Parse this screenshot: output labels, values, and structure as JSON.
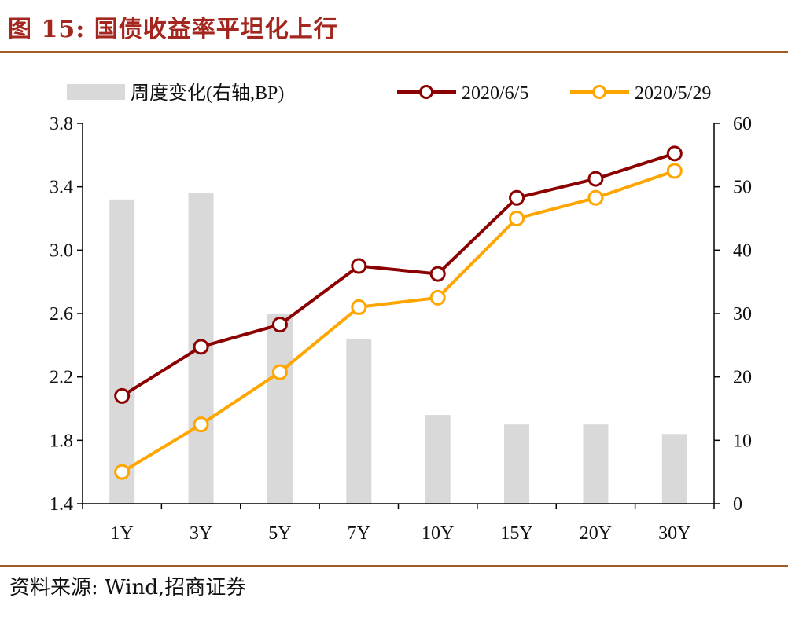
{
  "header": {
    "title": "图 15:  国债收益率平坦化上行"
  },
  "footer": {
    "source": "资料来源:  Wind,招商证券"
  },
  "chart_data": {
    "type": "bar+line",
    "categories": [
      "1Y",
      "3Y",
      "5Y",
      "7Y",
      "10Y",
      "15Y",
      "20Y",
      "30Y"
    ],
    "left_axis": {
      "ylim": [
        1.4,
        3.8
      ],
      "ticks": [
        "1.4",
        "1.8",
        "2.2",
        "2.6",
        "3.0",
        "3.4",
        "3.8"
      ]
    },
    "right_axis": {
      "ylim": [
        0,
        60
      ],
      "ticks": [
        "0",
        "10",
        "20",
        "30",
        "40",
        "50",
        "60"
      ]
    },
    "bars": {
      "name": "周度变化(右轴,BP)",
      "axis": "right",
      "color": "#d9d9d9",
      "values": [
        48,
        49,
        30,
        26,
        14,
        12.5,
        12.5,
        11
      ]
    },
    "series": [
      {
        "name": "2020/6/5",
        "axis": "left",
        "color": "#8b0000",
        "values": [
          2.08,
          2.39,
          2.53,
          2.9,
          2.85,
          3.33,
          3.45,
          3.61
        ]
      },
      {
        "name": "2020/5/29",
        "axis": "left",
        "color": "#ffa500",
        "values": [
          1.6,
          1.9,
          2.23,
          2.64,
          2.7,
          3.2,
          3.33,
          3.5
        ]
      }
    ],
    "legend": {
      "placement": "top"
    },
    "grid": false
  }
}
